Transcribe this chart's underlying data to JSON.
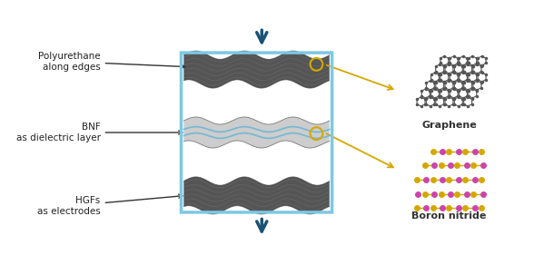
{
  "bg_color": "#ffffff",
  "title": "",
  "arrow_color": "#1a5276",
  "arrow_color_orange": "#f5a623",
  "fabric_dark_color": "#555555",
  "fabric_light_color": "#d0d0d0",
  "blue_border_color": "#7ec8e3",
  "labels": {
    "polyurethane": "Polyurethane\nalong edges",
    "bnf": "BNF\nas dielectric layer",
    "hgf": "HGFs\nas electrodes",
    "graphene": "Graphene",
    "boron_nitride": "Boron nitride"
  },
  "graphene_color": "#555555",
  "bn_color_yellow": "#d4a800",
  "bn_color_pink": "#cc44aa"
}
